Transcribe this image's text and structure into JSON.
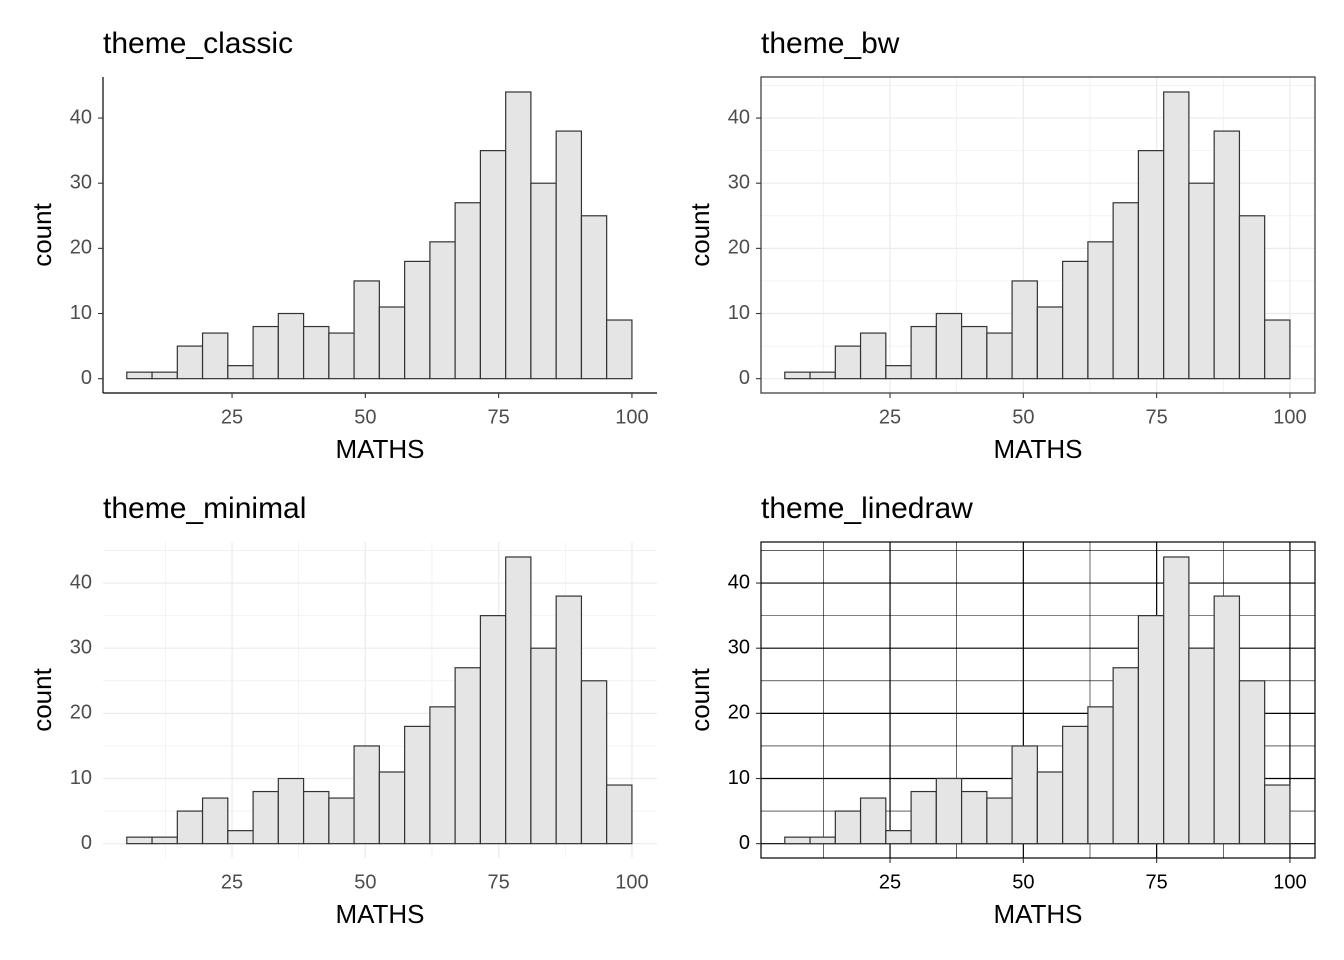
{
  "chart_data": [
    {
      "type": "histogram",
      "title": "theme_classic",
      "xlabel": "MATHS",
      "ylabel": "count",
      "bins": [
        5.26,
        10.0,
        14.74,
        19.47,
        24.21,
        28.95,
        33.68,
        38.42,
        43.16,
        47.89,
        52.63,
        57.37,
        62.11,
        66.84,
        71.58,
        76.32,
        81.05,
        85.79,
        90.53,
        95.26,
        100
      ],
      "values": [
        1,
        1,
        5,
        7,
        2,
        8,
        10,
        8,
        7,
        15,
        11,
        18,
        21,
        27,
        35,
        44,
        30,
        38,
        25,
        9
      ],
      "color": "#e5e5e5",
      "edge_color": "#333333",
      "xlim": [
        0.8,
        104.7
      ],
      "ylim": [
        -2.2,
        46.3
      ],
      "xticks": [
        25,
        50,
        75,
        100
      ],
      "yticks": [
        0,
        10,
        20,
        30,
        40
      ],
      "grid": false,
      "border": false,
      "axis_lines": true,
      "tick_marks": true,
      "tick_label_color": "#4d4d4d"
    },
    {
      "type": "histogram",
      "title": "theme_bw",
      "xlabel": "MATHS",
      "ylabel": "count",
      "bins": [
        5.26,
        10.0,
        14.74,
        19.47,
        24.21,
        28.95,
        33.68,
        38.42,
        43.16,
        47.89,
        52.63,
        57.37,
        62.11,
        66.84,
        71.58,
        76.32,
        81.05,
        85.79,
        90.53,
        95.26,
        100
      ],
      "values": [
        1,
        1,
        5,
        7,
        2,
        8,
        10,
        8,
        7,
        15,
        11,
        18,
        21,
        27,
        35,
        44,
        30,
        38,
        25,
        9
      ],
      "color": "#e5e5e5",
      "edge_color": "#333333",
      "xlim": [
        0.8,
        104.7
      ],
      "ylim": [
        -2.2,
        46.3
      ],
      "xticks": [
        25,
        50,
        75,
        100
      ],
      "yticks": [
        0,
        10,
        20,
        30,
        40
      ],
      "x_minor_breaks": [
        12.5,
        37.5,
        62.5,
        87.5
      ],
      "y_minor_breaks": [
        5,
        15,
        25,
        35,
        45
      ],
      "grid": true,
      "grid_color": "#ebebeb",
      "border": true,
      "border_color": "#333333",
      "axis_lines": false,
      "tick_marks": true,
      "tick_label_color": "#4d4d4d"
    },
    {
      "type": "histogram",
      "title": "theme_minimal",
      "xlabel": "MATHS",
      "ylabel": "count",
      "bins": [
        5.26,
        10.0,
        14.74,
        19.47,
        24.21,
        28.95,
        33.68,
        38.42,
        43.16,
        47.89,
        52.63,
        57.37,
        62.11,
        66.84,
        71.58,
        76.32,
        81.05,
        85.79,
        90.53,
        95.26,
        100
      ],
      "values": [
        1,
        1,
        5,
        7,
        2,
        8,
        10,
        8,
        7,
        15,
        11,
        18,
        21,
        27,
        35,
        44,
        30,
        38,
        25,
        9
      ],
      "color": "#e5e5e5",
      "edge_color": "#333333",
      "xlim": [
        0.8,
        104.7
      ],
      "ylim": [
        -2.2,
        46.3
      ],
      "xticks": [
        25,
        50,
        75,
        100
      ],
      "yticks": [
        0,
        10,
        20,
        30,
        40
      ],
      "x_minor_breaks": [
        12.5,
        37.5,
        62.5,
        87.5
      ],
      "y_minor_breaks": [
        5,
        15,
        25,
        35,
        45
      ],
      "grid": true,
      "grid_color": "#ebebeb",
      "border": false,
      "axis_lines": false,
      "tick_marks": false,
      "tick_label_color": "#4d4d4d"
    },
    {
      "type": "histogram",
      "title": "theme_linedraw",
      "xlabel": "MATHS",
      "ylabel": "count",
      "bins": [
        5.26,
        10.0,
        14.74,
        19.47,
        24.21,
        28.95,
        33.68,
        38.42,
        43.16,
        47.89,
        52.63,
        57.37,
        62.11,
        66.84,
        71.58,
        76.32,
        81.05,
        85.79,
        90.53,
        95.26,
        100
      ],
      "values": [
        1,
        1,
        5,
        7,
        2,
        8,
        10,
        8,
        7,
        15,
        11,
        18,
        21,
        27,
        35,
        44,
        30,
        38,
        25,
        9
      ],
      "color": "#e5e5e5",
      "edge_color": "#333333",
      "xlim": [
        0.8,
        104.7
      ],
      "ylim": [
        -2.2,
        46.3
      ],
      "xticks": [
        25,
        50,
        75,
        100
      ],
      "yticks": [
        0,
        10,
        20,
        30,
        40
      ],
      "x_minor_breaks": [
        12.5,
        37.5,
        62.5,
        87.5
      ],
      "y_minor_breaks": [
        5,
        15,
        25,
        35,
        45
      ],
      "grid": true,
      "grid_color": "#000000",
      "border": true,
      "border_color": "#000000",
      "axis_lines": false,
      "tick_marks": true,
      "tick_label_color": "#000000"
    }
  ]
}
